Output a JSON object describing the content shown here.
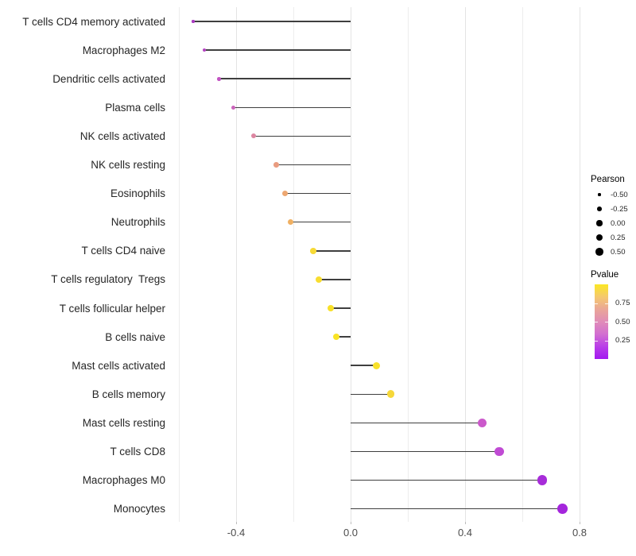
{
  "chart_data": {
    "type": "scatter",
    "style": "lollipop",
    "orientation": "horizontal",
    "title": "",
    "xlabel": "",
    "ylabel": "",
    "xlim": [
      -0.63,
      0.85
    ],
    "x_ticks": [
      -0.4,
      0.0,
      0.4,
      0.8
    ],
    "x_tick_labels": [
      "-0.4",
      "0.0",
      "0.4",
      "0.8"
    ],
    "x_minor_ticks": [
      -0.6,
      -0.2,
      0.2,
      0.6
    ],
    "grid": "vertical-only",
    "baseline": 0,
    "legend_position": "right",
    "size_encoding": "Pearson",
    "color_encoding": "Pvalue",
    "categories": [
      "T cells CD4 memory activated",
      "Macrophages M2",
      "Dendritic cells activated",
      "Plasma cells",
      "NK cells activated",
      "NK cells resting",
      "Eosinophils",
      "Neutrophils",
      "T cells CD4 naive",
      "T cells regulatory  Tregs",
      "T cells follicular helper",
      "B cells naive",
      "Mast cells activated",
      "B cells memory",
      "Mast cells resting",
      "T cells CD8",
      "Macrophages M0",
      "Monocytes"
    ],
    "series": [
      {
        "name": "Pearson",
        "values": [
          -0.55,
          -0.51,
          -0.46,
          -0.41,
          -0.34,
          -0.26,
          -0.23,
          -0.21,
          -0.13,
          -0.11,
          -0.07,
          -0.05,
          0.09,
          0.14,
          0.46,
          0.52,
          0.67,
          0.74
        ]
      }
    ],
    "point_colors": [
      "#a93bc0",
      "#b544c2",
      "#c253c2",
      "#cb64bb",
      "#dd86a1",
      "#e99c80",
      "#eda771",
      "#f0b062",
      "#f7da36",
      "#f8dd30",
      "#f8e029",
      "#f9e325",
      "#f8e12b",
      "#f6d83a",
      "#cb59cb",
      "#c04bd4",
      "#a72cd9",
      "#a425dc"
    ],
    "pvalue_approx": [
      0.15,
      0.18,
      0.22,
      0.27,
      0.4,
      0.52,
      0.57,
      0.62,
      0.82,
      0.85,
      0.88,
      0.92,
      0.9,
      0.84,
      0.24,
      0.2,
      0.1,
      0.08
    ]
  },
  "legend_size": {
    "title": "Pearson",
    "entries": [
      {
        "label": "-0.50",
        "value": -0.5
      },
      {
        "label": "-0.25",
        "value": -0.25
      },
      {
        "label": "0.00",
        "value": 0.0
      },
      {
        "label": "0.25",
        "value": 0.25
      },
      {
        "label": "0.50",
        "value": 0.5
      }
    ]
  },
  "legend_color": {
    "title": "Pvalue",
    "tick_labels": [
      "0.75",
      "0.50",
      "0.25"
    ],
    "tick_values": [
      0.75,
      0.5,
      0.25
    ],
    "range": [
      0,
      1
    ],
    "gradient_stops": [
      "#fbe723",
      "#f5c96e",
      "#eaa697",
      "#e08cb8",
      "#d26fd0",
      "#b93ee8",
      "#a318f0"
    ]
  }
}
